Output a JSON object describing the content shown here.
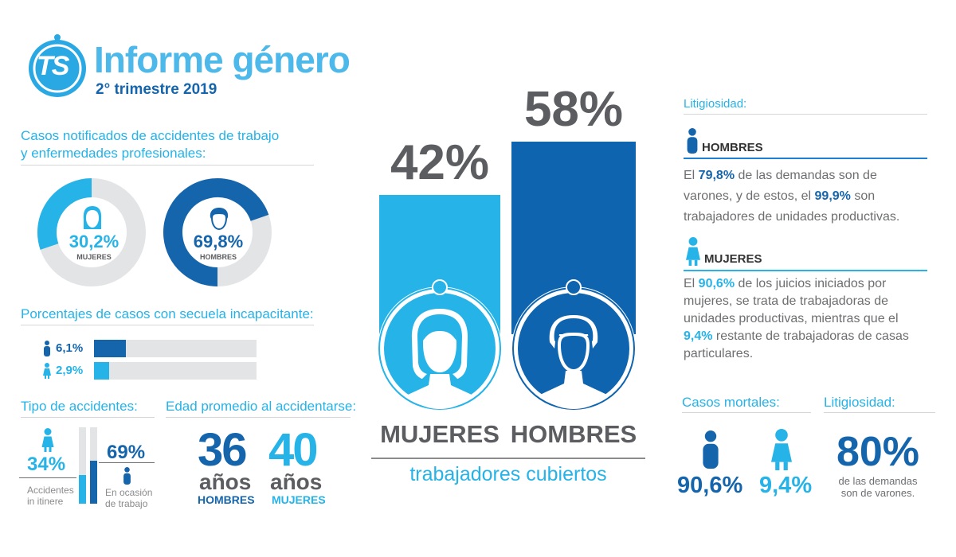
{
  "header": {
    "logo_text": "TS",
    "title": "Informe género",
    "subtitle": "2° trimestre 2019"
  },
  "colors": {
    "light_blue": "#25b3e8",
    "dark_blue": "#1565ad",
    "grey_track": "#e3e4e6",
    "text_grey": "#5c5d60"
  },
  "cases": {
    "title_line1": "Casos notificados de accidentes de trabajo",
    "title_line2": "y enfermedades profesionales:",
    "women": {
      "value_label": "30,2%",
      "label": "MUJERES",
      "icon": "woman-face-icon"
    },
    "men": {
      "value_label": "69,8%",
      "label": "HOMBRES",
      "icon": "man-face-icon"
    }
  },
  "sequel": {
    "title": "Porcentajes de casos con secuela incapacitante:",
    "men_label": "6,1%",
    "women_label": "2,9%"
  },
  "accidents": {
    "title": "Tipo de accidentes:",
    "itinere_value": "34%",
    "itinere_line1": "Accidentes",
    "itinere_line2": "in itinere",
    "trabajo_value": "69%",
    "trabajo_line1": "En ocasión",
    "trabajo_line2": "de trabajo"
  },
  "age": {
    "title": "Edad promedio al accidentarse:",
    "men_value": "36",
    "men_unit": "años",
    "men_label": "HOMBRES",
    "women_value": "40",
    "women_unit": "años",
    "women_label": "MUJERES"
  },
  "covered": {
    "women_value": "42%",
    "men_value": "58%",
    "women_label": "MUJERES",
    "men_label": "HOMBRES",
    "caption": "trabajadores cubiertos"
  },
  "litigiosidad": {
    "title": "Litigiosidad:",
    "men_heading": "HOMBRES",
    "men_p1": "El ",
    "men_v1": "79,8%",
    "men_p2": " de las demandas son de varones, y de estos, el ",
    "men_v2": "99,9%",
    "men_p3": " son trabajadores de unidades productivas.",
    "women_heading": "MUJERES",
    "women_p1": "El ",
    "women_v1": "90,6%",
    "women_p2": " de los juicios iniciados por mujeres, se trata de trabajadoras de unidades productivas, mientras que el ",
    "women_v2": "9,4%",
    "women_p3": " restante de trabajadoras de casas particulares."
  },
  "mortales": {
    "title": "Casos mortales:",
    "men_value": "90,6%",
    "women_value": "9,4%"
  },
  "litigiosidad2": {
    "title": "Litigiosidad:",
    "value": "80%",
    "line1": "de las demandas",
    "line2": "son de varones."
  },
  "chart_data": [
    {
      "type": "pie",
      "categories": [
        "MUJERES",
        "HOMBRES"
      ],
      "values": [
        30.2,
        69.8
      ]
    },
    {
      "type": "bar",
      "categories": [
        "HOMBRES",
        "MUJERES"
      ],
      "values": [
        6.1,
        2.9
      ],
      "ylim": [
        0,
        100
      ]
    },
    {
      "type": "bar",
      "categories": [
        "Accidentes in itinere",
        "En ocasión de trabajo"
      ],
      "values": [
        34,
        69
      ],
      "ylim": [
        0,
        100
      ]
    },
    {
      "type": "bar",
      "categories": [
        "MUJERES",
        "HOMBRES"
      ],
      "values": [
        42,
        58
      ]
    }
  ]
}
